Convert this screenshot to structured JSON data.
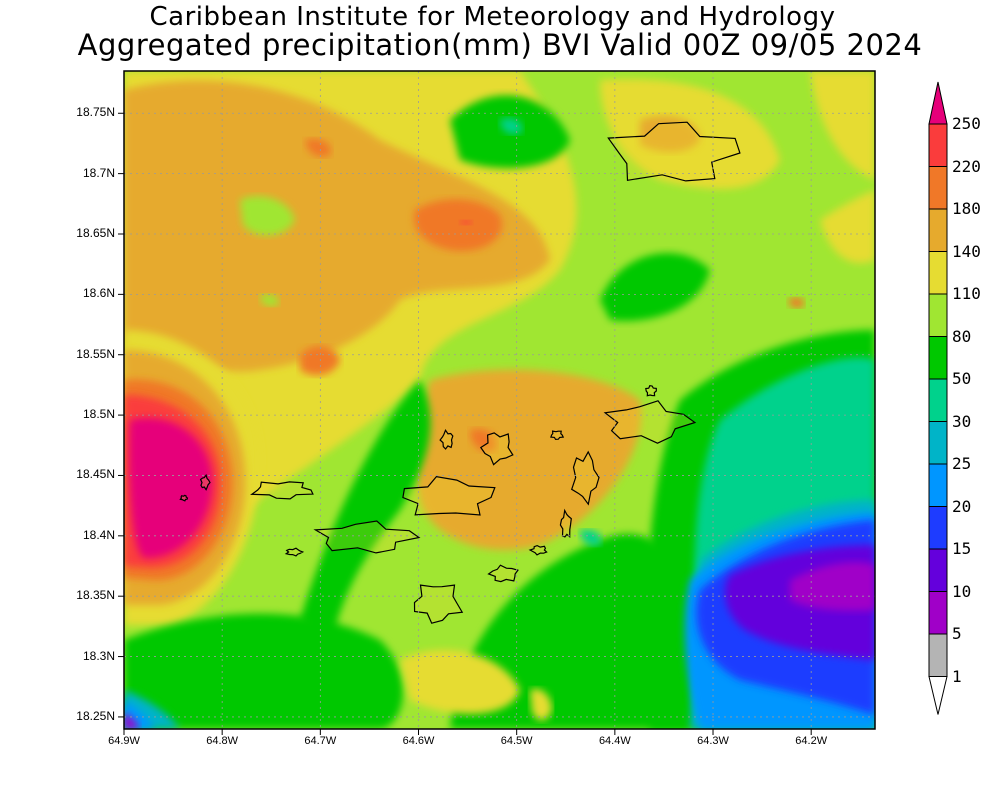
{
  "header": {
    "title": "Caribbean Institute for Meteorology and Hydrology",
    "subtitle": "Aggregated precipitation(mm) BVI Valid 00Z 09/05 2024"
  },
  "map": {
    "unit": "mm",
    "extent": {
      "lon_min": -64.9,
      "lon_max": -64.135,
      "lat_min": 18.24,
      "lat_max": 18.785
    },
    "y_ticks": [
      {
        "value": 18.75,
        "label": "18.75N"
      },
      {
        "value": 18.7,
        "label": "18.7N"
      },
      {
        "value": 18.65,
        "label": "18.65N"
      },
      {
        "value": 18.6,
        "label": "18.6N"
      },
      {
        "value": 18.55,
        "label": "18.55N"
      },
      {
        "value": 18.5,
        "label": "18.5N"
      },
      {
        "value": 18.45,
        "label": "18.45N"
      },
      {
        "value": 18.4,
        "label": "18.4N"
      },
      {
        "value": 18.35,
        "label": "18.35N"
      },
      {
        "value": 18.3,
        "label": "18.3N"
      },
      {
        "value": 18.25,
        "label": "18.25N"
      }
    ],
    "x_ticks": [
      {
        "value": -64.9,
        "label": "64.9W"
      },
      {
        "value": -64.8,
        "label": "64.8W"
      },
      {
        "value": -64.7,
        "label": "64.7W"
      },
      {
        "value": -64.6,
        "label": "64.6W"
      },
      {
        "value": -64.5,
        "label": "64.5W"
      },
      {
        "value": -64.4,
        "label": "64.4W"
      },
      {
        "value": -64.3,
        "label": "64.3W"
      },
      {
        "value": -64.2,
        "label": "64.2W"
      }
    ],
    "grid": true
  },
  "colorbar": {
    "levels": [
      "250",
      "220",
      "180",
      "140",
      "110",
      "80",
      "50",
      "30",
      "25",
      "20",
      "15",
      "10",
      "5",
      "1"
    ],
    "colors": [
      "#e6007a",
      "#fa3c3c",
      "#f07828",
      "#e6aa2d",
      "#e6dc32",
      "#a0e632",
      "#00c800",
      "#00d28c",
      "#00b4c8",
      "#0096ff",
      "#1e3cff",
      "#6400dc",
      "#a000c8",
      "#b4b4b4",
      "#ffffff"
    ]
  },
  "field_colors": {
    "c250": "#e6007a",
    "c220": "#fa3c3c",
    "c180": "#f07828",
    "c140": "#e6aa2d",
    "c110": "#e6dc32",
    "c80": "#a0e632",
    "c50": "#00c800",
    "c30": "#00d28c",
    "c25": "#00b4c8",
    "c20": "#0096ff",
    "c15": "#1e3cff",
    "c10": "#6400dc",
    "c5": "#a000c8",
    "land": "#000000"
  }
}
